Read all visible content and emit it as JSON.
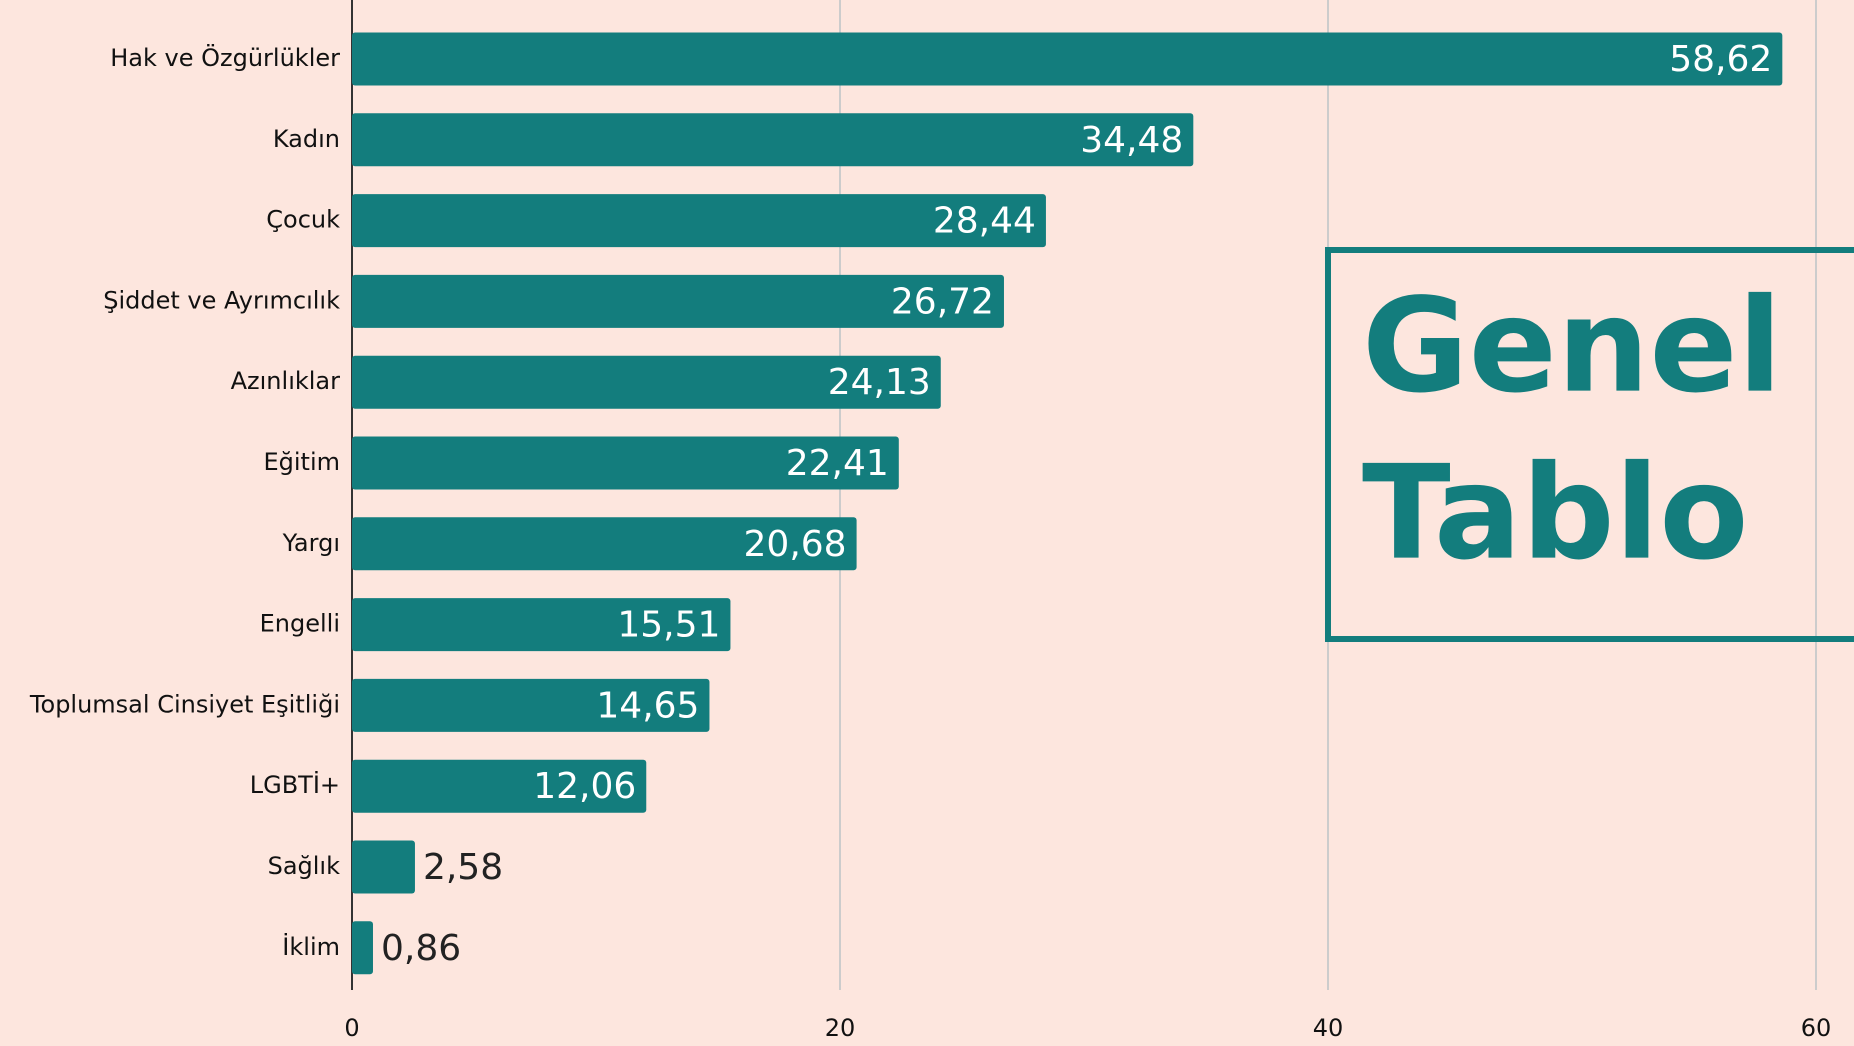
{
  "chart_data": {
    "type": "barh",
    "categories": [
      "Hak ve Özgürlükler",
      "Kadın",
      "Çocuk",
      "Şiddet ve Ayrımcılık",
      "Azınlıklar",
      "Eğitim",
      "Yargı",
      "Engelli",
      "Toplumsal Cinsiyet Eşitliği",
      "LGBTİ+",
      "Sağlık",
      "İklim"
    ],
    "values": [
      58.62,
      34.48,
      28.44,
      26.72,
      24.13,
      22.41,
      20.68,
      15.51,
      14.65,
      12.06,
      2.58,
      0.86
    ],
    "value_labels": [
      "58,62",
      "34,48",
      "28,44",
      "26,72",
      "24,13",
      "22,41",
      "20,68",
      "15,51",
      "14,65",
      "12,06",
      "2,58",
      "0,86"
    ],
    "color": "#137d7d",
    "xlim": [
      0,
      60
    ],
    "xticks": [
      0,
      20,
      40,
      60
    ],
    "grid": true,
    "annotation": [
      "Genel",
      "Tablo"
    ]
  }
}
